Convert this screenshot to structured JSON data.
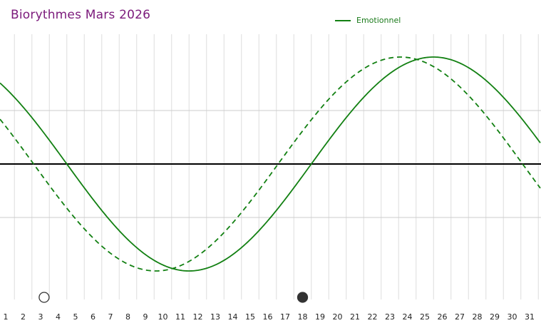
{
  "chart_data": {
    "type": "line",
    "title": "Biorythmes Mars 2026",
    "legend": {
      "entries": [
        "Emotionnel"
      ],
      "placement": "top-right"
    },
    "colors": {
      "title": "#7b1a7b",
      "emotionnel": "#128012",
      "axis": "#000000",
      "grid": "#dddddd",
      "marker": "#333333"
    },
    "x": {
      "ticks": [
        1,
        2,
        3,
        4,
        5,
        6,
        7,
        8,
        9,
        10,
        11,
        12,
        13,
        14,
        15,
        16,
        17,
        18,
        19,
        20,
        21,
        22,
        23,
        24,
        25,
        26,
        27,
        28,
        29,
        30,
        31
      ],
      "range": [
        0.75,
        31.65
      ]
    },
    "y": {
      "range": [
        -1.25,
        1.25
      ],
      "gridlines": [
        -0.5,
        0.5
      ],
      "zero_line": true
    },
    "grid": true,
    "series": [
      {
        "name": "Emotionnel",
        "style": "solid",
        "period_days": 28,
        "peak_day": 25.5,
        "amplitude": 1
      },
      {
        "style": "dashed",
        "period_days": 28,
        "peak_day": 23.6,
        "amplitude": 1
      }
    ],
    "markers": [
      {
        "day": 3.2,
        "style": "open"
      },
      {
        "day": 18.0,
        "style": "filled"
      }
    ]
  }
}
